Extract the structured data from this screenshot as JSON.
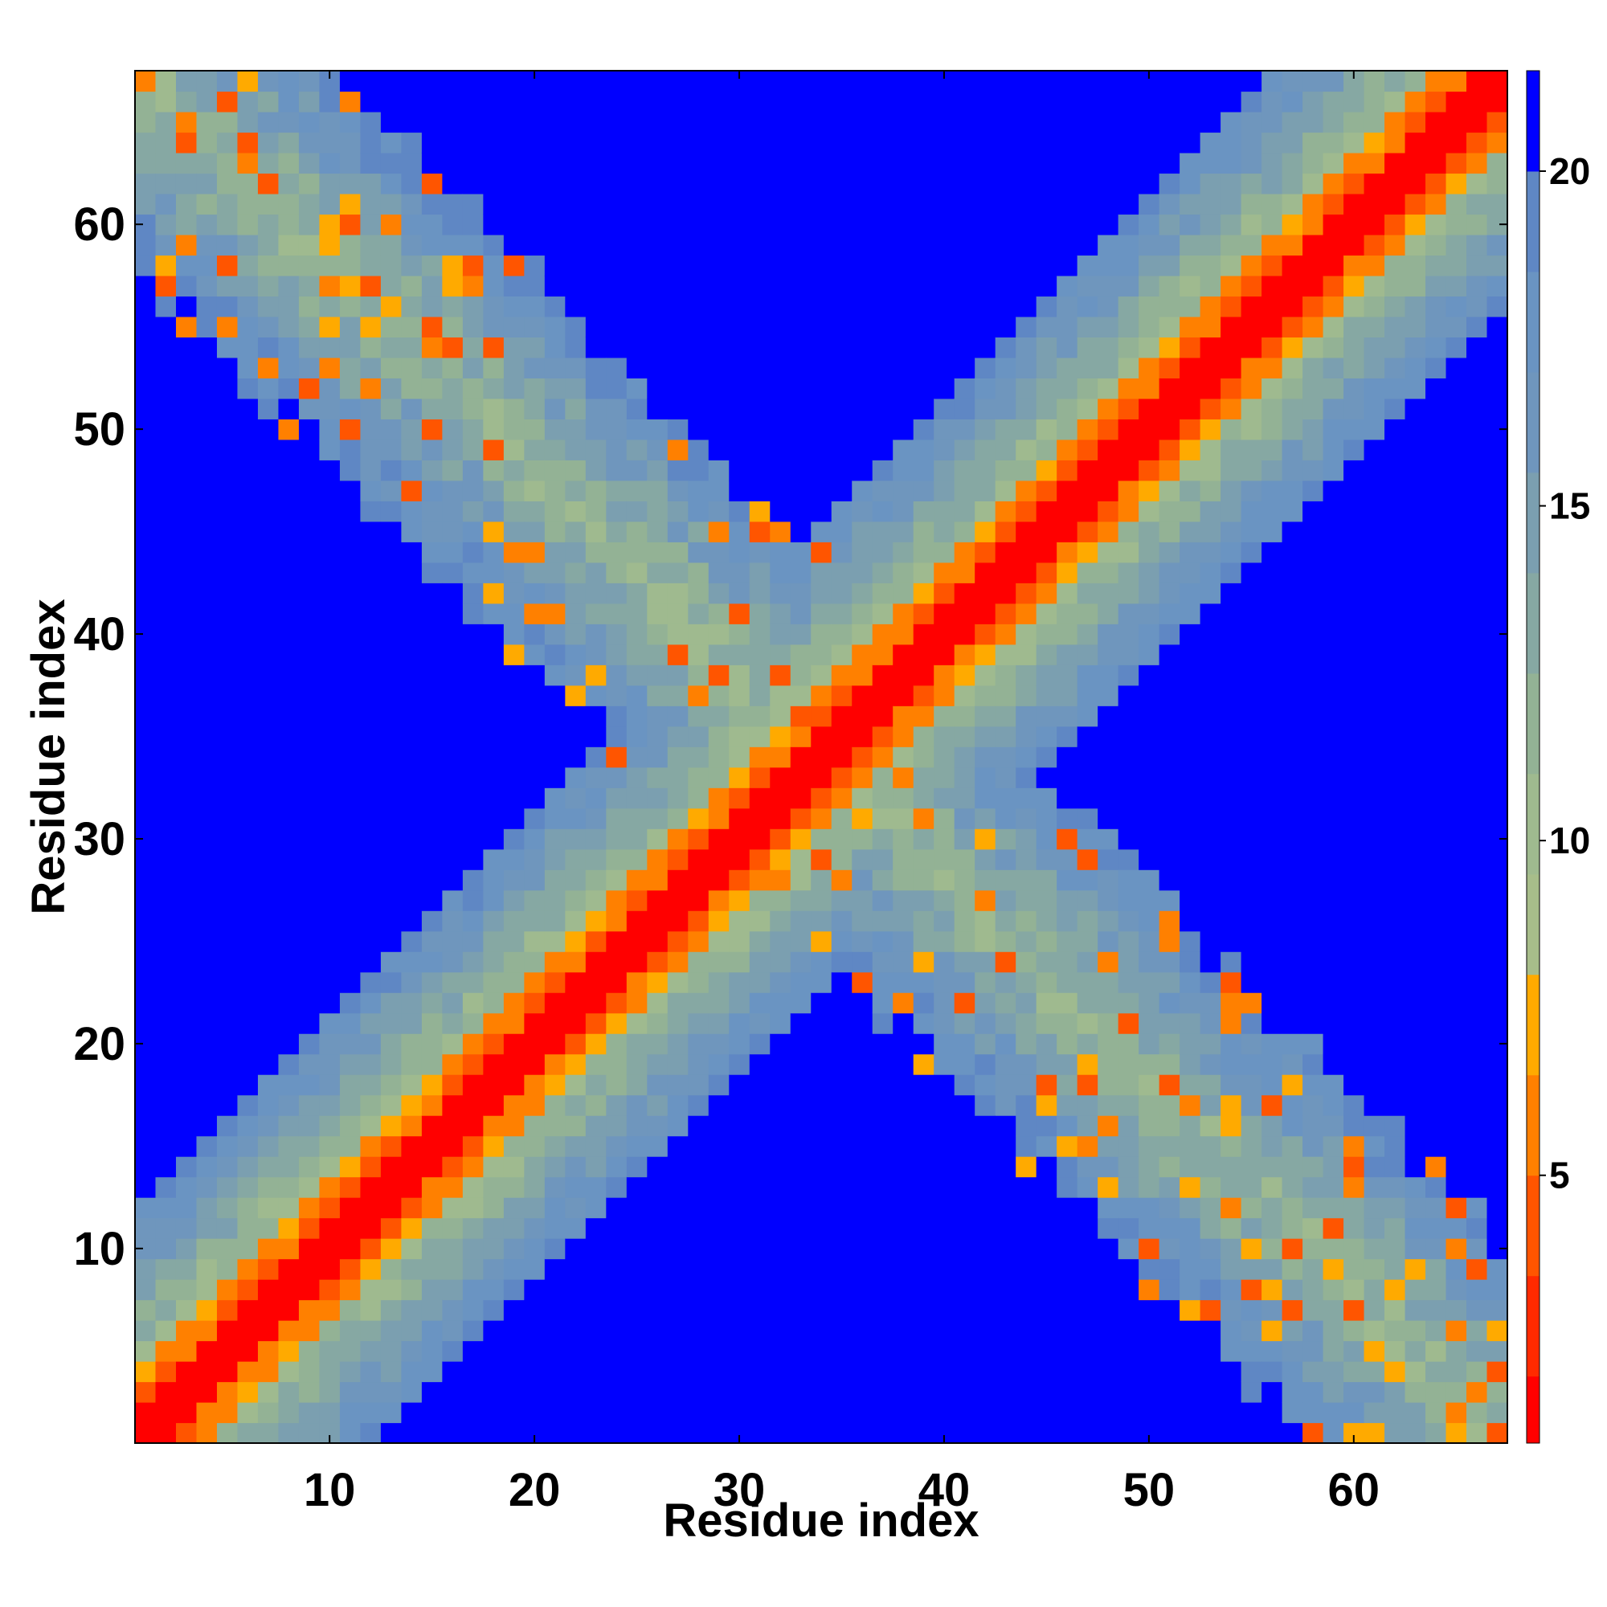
{
  "chart_data": {
    "type": "heatmap",
    "description_of_values": "pairwise distance-style contact map; diagonal band near 0, value saturates at the top of the color scale",
    "title": "",
    "xlabel": "Residue index",
    "ylabel": "Residue index",
    "n": 67,
    "xlim": [
      1,
      67
    ],
    "ylim": [
      1,
      67
    ],
    "x_ticks": [
      10,
      20,
      30,
      40,
      50,
      60
    ],
    "y_ticks": [
      10,
      20,
      30,
      40,
      50,
      60
    ],
    "colorbar": {
      "ticks": [
        5,
        10,
        15,
        20
      ],
      "min": 1,
      "max": 21.5,
      "bins": [
        {
          "upper": 2,
          "color": "#ff0000"
        },
        {
          "upper": 3.5,
          "color": "#ff2a00"
        },
        {
          "upper": 5,
          "color": "#ff5500"
        },
        {
          "upper": 6.5,
          "color": "#ff8000"
        },
        {
          "upper": 8,
          "color": "#ffaa00"
        },
        {
          "upper": 9.5,
          "color": "#a7bd8a"
        },
        {
          "upper": 11,
          "color": "#9fba8f"
        },
        {
          "upper": 12.5,
          "color": "#93b295"
        },
        {
          "upper": 14,
          "color": "#86a8a3"
        },
        {
          "upper": 15.5,
          "color": "#7b9fb0"
        },
        {
          "upper": 17,
          "color": "#6f96bd"
        },
        {
          "upper": 18.5,
          "color": "#6a94c2"
        },
        {
          "upper": 20,
          "color": "#5f87c4"
        },
        {
          "upper": 21.5,
          "color": "#0000ff"
        }
      ]
    },
    "structure": {
      "main_diagonal_band": {
        "red_halfwidth": 1,
        "orange_halfwidth": 3,
        "nonblue_halfwidth": 11
      },
      "anti_diagonal_arms": {
        "ends_at": [
          [
            1,
            67
          ],
          [
            67,
            1
          ]
        ],
        "center": [
          35,
          35
        ],
        "half_width": 9,
        "interior_speckle": "orange hot-spots scattered among green-blue values"
      }
    }
  }
}
